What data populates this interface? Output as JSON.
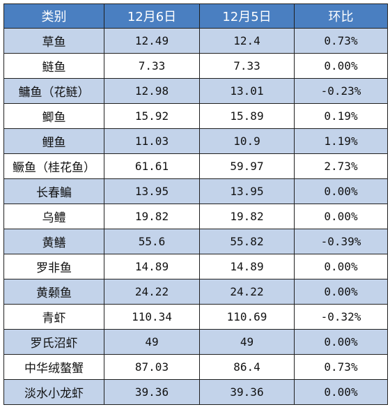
{
  "headers": [
    "类别",
    "12月6日",
    "12月5日",
    "环比"
  ],
  "rows": [
    {
      "name": "草鱼",
      "d6": "12.49",
      "d5": "12.4",
      "change": "0.73%"
    },
    {
      "name": "鲢鱼",
      "d6": "7.33",
      "d5": "7.33",
      "change": "0.00%"
    },
    {
      "name": "鳙鱼（花鲢）",
      "d6": "12.98",
      "d5": "13.01",
      "change": "-0.23%"
    },
    {
      "name": "鲫鱼",
      "d6": "15.92",
      "d5": "15.89",
      "change": "0.19%"
    },
    {
      "name": "鲤鱼",
      "d6": "11.03",
      "d5": "10.9",
      "change": "1.19%"
    },
    {
      "name": "鳜鱼（桂花鱼）",
      "d6": "61.61",
      "d5": "59.97",
      "change": "2.73%"
    },
    {
      "name": "长春鳊",
      "d6": "13.95",
      "d5": "13.95",
      "change": "0.00%"
    },
    {
      "name": "乌鳢",
      "d6": "19.82",
      "d5": "19.82",
      "change": "0.00%"
    },
    {
      "name": "黄鳝",
      "d6": "55.6",
      "d5": "55.82",
      "change": "-0.39%"
    },
    {
      "name": "罗非鱼",
      "d6": "14.89",
      "d5": "14.89",
      "change": "0.00%"
    },
    {
      "name": "黄颡鱼",
      "d6": "24.22",
      "d5": "24.22",
      "change": "0.00%"
    },
    {
      "name": "青虾",
      "d6": "110.34",
      "d5": "110.69",
      "change": "-0.32%"
    },
    {
      "name": "罗氏沼虾",
      "d6": "49",
      "d5": "49",
      "change": "0.00%"
    },
    {
      "name": "中华绒螯蟹",
      "d6": "87.03",
      "d5": "86.4",
      "change": "0.73%"
    },
    {
      "name": "淡水小龙虾",
      "d6": "39.36",
      "d5": "39.36",
      "change": "0.00%"
    }
  ]
}
